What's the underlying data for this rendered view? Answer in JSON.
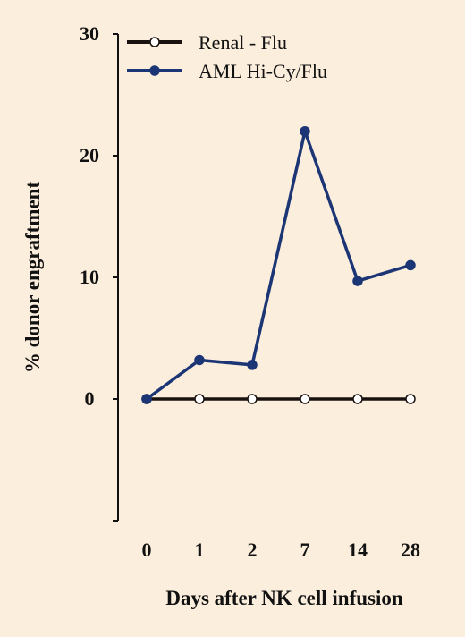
{
  "colors": {
    "background": "#fbeedd",
    "axis": "#111111",
    "renal": "#1a1210",
    "aml": "#1b3575"
  },
  "chart_data": {
    "type": "line",
    "title": "",
    "xlabel": "Days after NK cell infusion",
    "ylabel": "% donor engraftment",
    "categories": [
      "0",
      "1",
      "2",
      "7",
      "14",
      "28"
    ],
    "y_ticks": [
      "30",
      "20",
      "10",
      "0"
    ],
    "y_tick_values": [
      30,
      20,
      10,
      0
    ],
    "ylim": [
      -10,
      30
    ],
    "grid": false,
    "legend_position": "top-left",
    "series": [
      {
        "name": "Renal - Flu",
        "marker": "open-circle",
        "color": "#1a1210",
        "values": [
          0,
          0,
          0,
          0,
          0,
          0
        ]
      },
      {
        "name": "AML Hi-Cy/Flu",
        "marker": "filled-circle",
        "color": "#1b3575",
        "values": [
          0,
          3.2,
          2.8,
          22,
          9.7,
          11
        ]
      }
    ]
  }
}
